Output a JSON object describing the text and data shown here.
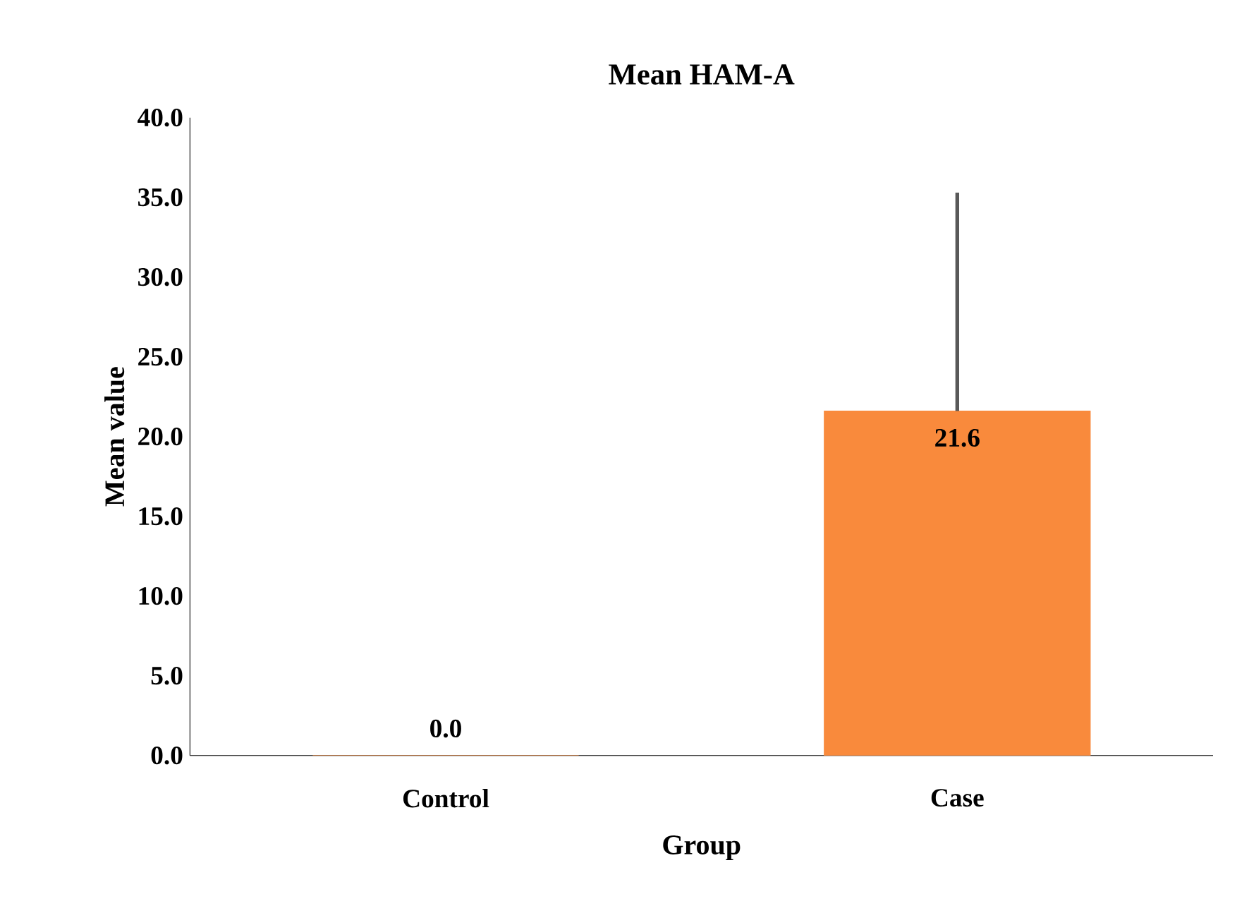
{
  "chart_data": {
    "type": "bar",
    "title": "Mean HAM-A",
    "xlabel": "Group",
    "ylabel": "Mean value",
    "categories": [
      "Control",
      "Case"
    ],
    "values": [
      0,
      21.6
    ],
    "value_labels": [
      "0.0",
      "21.6"
    ],
    "errors": [
      null,
      [
        21.6,
        35.3
      ]
    ],
    "color": "#f98a3c",
    "ylim": [
      0,
      40
    ],
    "yticks": [
      {
        "value": 0,
        "label": "0.0"
      },
      {
        "value": 5,
        "label": "5.0"
      },
      {
        "value": 10,
        "label": "10.0"
      },
      {
        "value": 15,
        "label": "15.0"
      },
      {
        "value": 20,
        "label": "20.0"
      },
      {
        "value": 25,
        "label": "25.0"
      },
      {
        "value": 30,
        "label": "30.0"
      },
      {
        "value": 35,
        "label": "35.0"
      },
      {
        "value": 40,
        "label": "40.0"
      }
    ],
    "grid": false
  }
}
